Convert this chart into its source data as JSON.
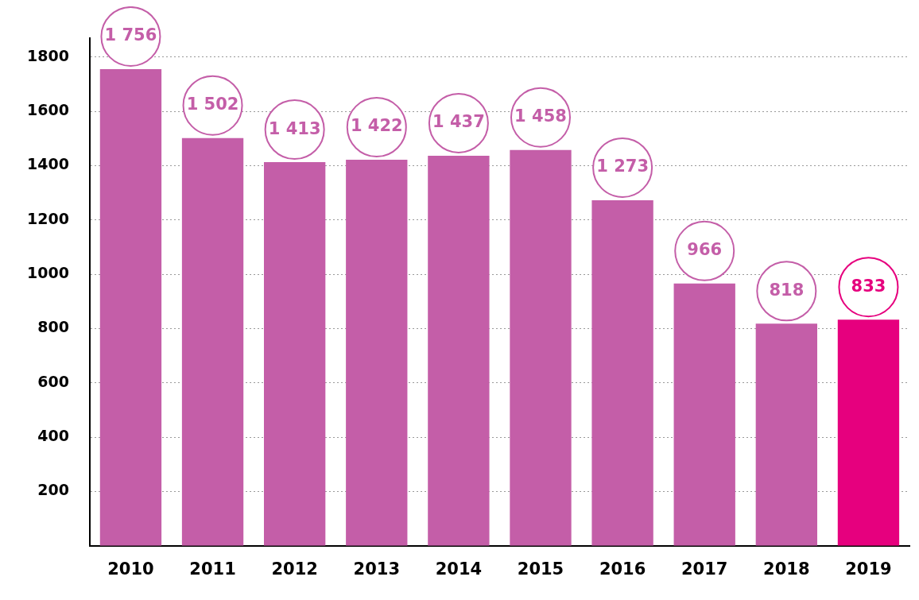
{
  "chart_data": {
    "type": "bar",
    "categories": [
      "2010",
      "2011",
      "2012",
      "2013",
      "2014",
      "2015",
      "2016",
      "2017",
      "2018",
      "2019"
    ],
    "values": [
      1756,
      1502,
      1413,
      1422,
      1437,
      1458,
      1273,
      966,
      818,
      833
    ],
    "value_labels": [
      "1 756",
      "1 502",
      "1 413",
      "1 422",
      "1 437",
      "1 458",
      "1 273",
      "966",
      "818",
      "833"
    ],
    "colors": [
      "#c45ea8",
      "#c45ea8",
      "#c45ea8",
      "#c45ea8",
      "#c45ea8",
      "#c45ea8",
      "#c45ea8",
      "#c45ea8",
      "#c45ea8",
      "#e6007e"
    ],
    "ylim": [
      0,
      1870
    ],
    "yticks": [
      200,
      400,
      600,
      800,
      1000,
      1200,
      1400,
      1600,
      1800
    ],
    "grid": "y",
    "legend": false
  }
}
